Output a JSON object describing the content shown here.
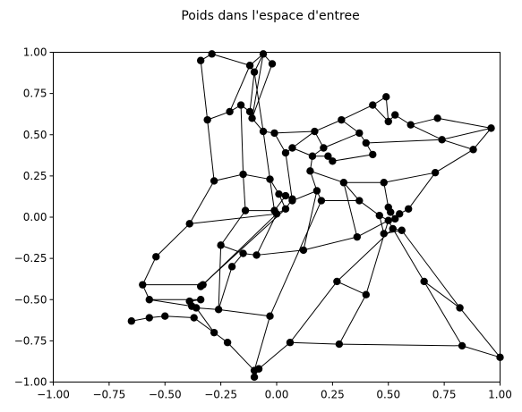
{
  "chart_data": {
    "type": "scatter",
    "title": "Poids dans l'espace d'entree",
    "xlabel": "",
    "ylabel": "",
    "xlim": [
      -1.0,
      1.0
    ],
    "ylim": [
      -1.0,
      1.0
    ],
    "x_ticks": [
      "−1.00",
      "−0.75",
      "−0.50",
      "−0.25",
      "0.00",
      "0.25",
      "0.50",
      "0.75",
      "1.00"
    ],
    "y_ticks": [
      "1.00",
      "0.75",
      "0.50",
      "0.25",
      "0.00",
      "−0.25",
      "−0.50",
      "−0.75",
      "−1.00"
    ],
    "grid": false,
    "points": [
      [
        -0.34,
        0.95
      ],
      [
        -0.29,
        0.99
      ],
      [
        -0.12,
        0.92
      ],
      [
        -0.06,
        0.99
      ],
      [
        -0.02,
        0.93
      ],
      [
        -0.1,
        0.88
      ],
      [
        -0.31,
        0.59
      ],
      [
        -0.21,
        0.64
      ],
      [
        -0.16,
        0.68
      ],
      [
        -0.12,
        0.64
      ],
      [
        -0.11,
        0.6
      ],
      [
        -0.06,
        0.52
      ],
      [
        -0.01,
        0.51
      ],
      [
        0.04,
        0.39
      ],
      [
        0.07,
        0.42
      ],
      [
        0.17,
        0.52
      ],
      [
        0.29,
        0.59
      ],
      [
        0.43,
        0.68
      ],
      [
        0.49,
        0.73
      ],
      [
        0.5,
        0.58
      ],
      [
        0.53,
        0.62
      ],
      [
        0.6,
        0.56
      ],
      [
        0.72,
        0.6
      ],
      [
        0.96,
        0.54
      ],
      [
        0.37,
        0.51
      ],
      [
        0.4,
        0.45
      ],
      [
        0.21,
        0.42
      ],
      [
        0.16,
        0.37
      ],
      [
        0.23,
        0.37
      ],
      [
        0.25,
        0.34
      ],
      [
        0.43,
        0.38
      ],
      [
        0.74,
        0.47
      ],
      [
        0.88,
        0.41
      ],
      [
        0.71,
        0.27
      ],
      [
        0.15,
        0.28
      ],
      [
        0.3,
        0.21
      ],
      [
        0.48,
        0.21
      ],
      [
        -0.28,
        0.22
      ],
      [
        -0.15,
        0.26
      ],
      [
        -0.03,
        0.23
      ],
      [
        0.01,
        0.14
      ],
      [
        0.04,
        0.13
      ],
      [
        0.07,
        0.11
      ],
      [
        0.07,
        0.1
      ],
      [
        0.04,
        0.05
      ],
      [
        0.0,
        0.02
      ],
      [
        -0.01,
        0.04
      ],
      [
        0.18,
        0.16
      ],
      [
        0.2,
        0.1
      ],
      [
        0.37,
        0.1
      ],
      [
        0.46,
        0.01
      ],
      [
        0.5,
        0.06
      ],
      [
        0.51,
        0.03
      ],
      [
        0.53,
        -0.01
      ],
      [
        0.55,
        0.02
      ],
      [
        0.59,
        0.05
      ],
      [
        0.5,
        -0.02
      ],
      [
        0.52,
        -0.07
      ],
      [
        0.56,
        -0.08
      ],
      [
        0.48,
        -0.1
      ],
      [
        -0.14,
        0.04
      ],
      [
        -0.39,
        -0.04
      ],
      [
        -0.25,
        -0.17
      ],
      [
        -0.54,
        -0.24
      ],
      [
        -0.15,
        -0.22
      ],
      [
        -0.09,
        -0.23
      ],
      [
        0.12,
        -0.2
      ],
      [
        0.36,
        -0.12
      ],
      [
        -0.2,
        -0.3
      ],
      [
        -0.6,
        -0.41
      ],
      [
        -0.33,
        -0.41
      ],
      [
        -0.34,
        -0.42
      ],
      [
        -0.57,
        -0.5
      ],
      [
        -0.34,
        -0.5
      ],
      [
        -0.39,
        -0.51
      ],
      [
        -0.38,
        -0.54
      ],
      [
        -0.36,
        -0.55
      ],
      [
        -0.26,
        -0.56
      ],
      [
        -0.5,
        -0.6
      ],
      [
        -0.57,
        -0.61
      ],
      [
        -0.65,
        -0.63
      ],
      [
        -0.37,
        -0.61
      ],
      [
        -0.28,
        -0.7
      ],
      [
        -0.22,
        -0.76
      ],
      [
        -0.03,
        -0.6
      ],
      [
        0.06,
        -0.76
      ],
      [
        0.27,
        -0.39
      ],
      [
        0.4,
        -0.47
      ],
      [
        0.66,
        -0.39
      ],
      [
        0.82,
        -0.55
      ],
      [
        0.28,
        -0.77
      ],
      [
        0.83,
        -0.78
      ],
      [
        1.0,
        -0.85
      ],
      [
        -0.1,
        -0.93
      ],
      [
        -0.08,
        -0.92
      ],
      [
        -0.1,
        -0.97
      ]
    ],
    "edges": [
      [
        0,
        1
      ],
      [
        1,
        2
      ],
      [
        2,
        3
      ],
      [
        3,
        4
      ],
      [
        2,
        5
      ],
      [
        5,
        3
      ],
      [
        0,
        6
      ],
      [
        6,
        7
      ],
      [
        7,
        8
      ],
      [
        8,
        9
      ],
      [
        9,
        10
      ],
      [
        10,
        11
      ],
      [
        11,
        12
      ],
      [
        2,
        7
      ],
      [
        5,
        9
      ],
      [
        5,
        11
      ],
      [
        3,
        10
      ],
      [
        12,
        13
      ],
      [
        13,
        14
      ],
      [
        14,
        15
      ],
      [
        15,
        16
      ],
      [
        16,
        17
      ],
      [
        17,
        18
      ],
      [
        18,
        19
      ],
      [
        19,
        20
      ],
      [
        20,
        21
      ],
      [
        21,
        22
      ],
      [
        22,
        23
      ],
      [
        17,
        19
      ],
      [
        16,
        24
      ],
      [
        24,
        25
      ],
      [
        15,
        26
      ],
      [
        26,
        27
      ],
      [
        27,
        28
      ],
      [
        28,
        29
      ],
      [
        29,
        30
      ],
      [
        25,
        30
      ],
      [
        25,
        31
      ],
      [
        31,
        32
      ],
      [
        23,
        32
      ],
      [
        23,
        31
      ],
      [
        21,
        31
      ],
      [
        24,
        26
      ],
      [
        12,
        15
      ],
      [
        14,
        27
      ],
      [
        6,
        37
      ],
      [
        8,
        38
      ],
      [
        11,
        39
      ],
      [
        37,
        38
      ],
      [
        38,
        39
      ],
      [
        39,
        40
      ],
      [
        40,
        41
      ],
      [
        41,
        42
      ],
      [
        42,
        43
      ],
      [
        34,
        27
      ],
      [
        34,
        35
      ],
      [
        35,
        36
      ],
      [
        36,
        33
      ],
      [
        33,
        32
      ],
      [
        34,
        47
      ],
      [
        47,
        48
      ],
      [
        48,
        49
      ],
      [
        49,
        50
      ],
      [
        35,
        49
      ],
      [
        36,
        51
      ],
      [
        51,
        52
      ],
      [
        52,
        53
      ],
      [
        53,
        54
      ],
      [
        54,
        55
      ],
      [
        55,
        33
      ],
      [
        50,
        56
      ],
      [
        56,
        57
      ],
      [
        57,
        58
      ],
      [
        58,
        59
      ],
      [
        59,
        50
      ],
      [
        40,
        44
      ],
      [
        44,
        45
      ],
      [
        45,
        46
      ],
      [
        46,
        39
      ],
      [
        42,
        44
      ],
      [
        13,
        43
      ],
      [
        38,
        60
      ],
      [
        60,
        46
      ],
      [
        61,
        37
      ],
      [
        61,
        45
      ],
      [
        61,
        63
      ],
      [
        62,
        60
      ],
      [
        62,
        64
      ],
      [
        64,
        65
      ],
      [
        65,
        66
      ],
      [
        66,
        67
      ],
      [
        67,
        56
      ],
      [
        63,
        69
      ],
      [
        69,
        70
      ],
      [
        70,
        71
      ],
      [
        69,
        72
      ],
      [
        72,
        73
      ],
      [
        73,
        74
      ],
      [
        74,
        75
      ],
      [
        75,
        76
      ],
      [
        76,
        77
      ],
      [
        77,
        68
      ],
      [
        68,
        64
      ],
      [
        70,
        45
      ],
      [
        71,
        44
      ],
      [
        78,
        79
      ],
      [
        79,
        80
      ],
      [
        78,
        81
      ],
      [
        81,
        82
      ],
      [
        82,
        83
      ],
      [
        83,
        93
      ],
      [
        93,
        94
      ],
      [
        94,
        95
      ],
      [
        94,
        85
      ],
      [
        85,
        86
      ],
      [
        86,
        57
      ],
      [
        84,
        48
      ],
      [
        84,
        93
      ],
      [
        77,
        84
      ],
      [
        86,
        87
      ],
      [
        87,
        56
      ],
      [
        88,
        57
      ],
      [
        88,
        89
      ],
      [
        89,
        92
      ],
      [
        90,
        91
      ],
      [
        90,
        85
      ],
      [
        90,
        87
      ],
      [
        91,
        92
      ],
      [
        88,
        91
      ],
      [
        66,
        47
      ],
      [
        67,
        35
      ],
      [
        65,
        45
      ],
      [
        62,
        77
      ],
      [
        72,
        75
      ],
      [
        76,
        82
      ],
      [
        58,
        89
      ],
      [
        43,
        47
      ],
      [
        41,
        46
      ],
      [
        4,
        10
      ]
    ]
  }
}
